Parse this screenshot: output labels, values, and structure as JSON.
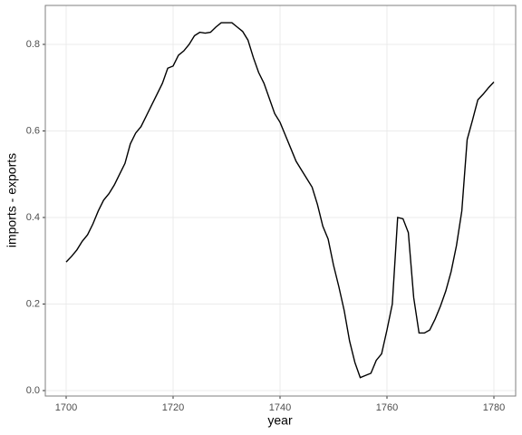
{
  "chart_data": {
    "type": "line",
    "x_label": "year",
    "y_label": "imports - exports",
    "x": [
      1700,
      1701,
      1702,
      1703,
      1704,
      1705,
      1706,
      1707,
      1708,
      1709,
      1710,
      1711,
      1712,
      1713,
      1714,
      1715,
      1716,
      1717,
      1718,
      1719,
      1720,
      1721,
      1722,
      1723,
      1724,
      1725,
      1726,
      1727,
      1728,
      1729,
      1730,
      1731,
      1732,
      1733,
      1734,
      1735,
      1736,
      1737,
      1738,
      1739,
      1740,
      1741,
      1742,
      1743,
      1744,
      1745,
      1746,
      1747,
      1748,
      1749,
      1750,
      1751,
      1752,
      1753,
      1754,
      1755,
      1756,
      1757,
      1758,
      1759,
      1760,
      1761,
      1762,
      1763,
      1764,
      1765,
      1766,
      1767,
      1768,
      1769,
      1770,
      1771,
      1772,
      1773,
      1774,
      1775,
      1776,
      1777,
      1778,
      1779,
      1780
    ],
    "values": [
      0.297,
      0.31,
      0.325,
      0.345,
      0.36,
      0.385,
      0.415,
      0.44,
      0.455,
      0.475,
      0.5,
      0.525,
      0.57,
      0.595,
      0.61,
      0.635,
      0.66,
      0.685,
      0.71,
      0.745,
      0.75,
      0.775,
      0.785,
      0.8,
      0.82,
      0.828,
      0.826,
      0.828,
      0.84,
      0.85,
      0.85,
      0.85,
      0.84,
      0.83,
      0.81,
      0.77,
      0.735,
      0.71,
      0.675,
      0.64,
      0.62,
      0.59,
      0.56,
      0.53,
      0.51,
      0.49,
      0.47,
      0.43,
      0.38,
      0.35,
      0.29,
      0.24,
      0.185,
      0.115,
      0.065,
      0.03,
      0.035,
      0.04,
      0.07,
      0.085,
      0.14,
      0.2,
      0.4,
      0.397,
      0.365,
      0.215,
      0.133,
      0.133,
      0.14,
      0.165,
      0.195,
      0.23,
      0.275,
      0.335,
      0.415,
      0.58,
      0.625,
      0.672,
      0.685,
      0.7,
      0.713
    ],
    "color": "#000000",
    "xlim": [
      1696.1,
      1784.07
    ],
    "xticks": [
      1700,
      1720,
      1740,
      1760,
      1780
    ],
    "ylim": [
      -0.0126,
      0.89
    ],
    "yticks": [
      {
        "value": 0,
        "label": "0.0"
      },
      0.2,
      0.4,
      0.6,
      0.8
    ],
    "grid": true
  }
}
